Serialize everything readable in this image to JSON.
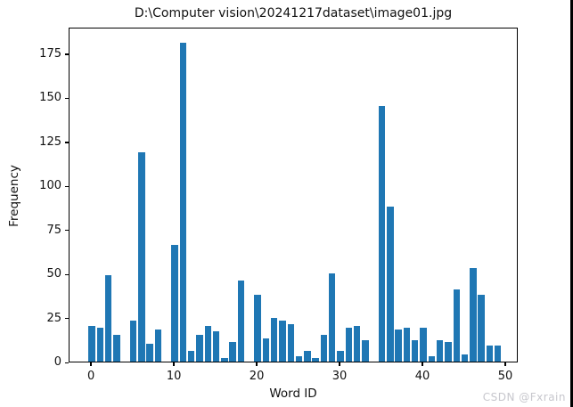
{
  "chart_data": {
    "type": "bar",
    "title": "D:\\Computer vision\\20241217dataset\\image01.jpg",
    "xlabel": "Word ID",
    "ylabel": "Frequency",
    "x": [
      0,
      1,
      2,
      3,
      4,
      5,
      6,
      7,
      8,
      9,
      10,
      11,
      12,
      13,
      14,
      15,
      16,
      17,
      18,
      19,
      20,
      21,
      22,
      23,
      24,
      25,
      26,
      27,
      28,
      29,
      30,
      31,
      32,
      33,
      34,
      35,
      36,
      37,
      38,
      39,
      40,
      41,
      42,
      43,
      44,
      45,
      46,
      47,
      48,
      49
    ],
    "values": [
      20,
      19,
      49,
      15,
      0,
      23,
      119,
      10,
      18,
      0,
      66,
      181,
      6,
      15,
      20,
      17,
      2,
      11,
      46,
      0,
      38,
      13,
      25,
      23,
      21,
      3,
      6,
      2,
      15,
      50,
      6,
      19,
      20,
      12,
      0,
      145,
      88,
      18,
      19,
      12,
      19,
      3,
      12,
      11,
      41,
      4,
      53,
      38,
      9,
      9
    ],
    "xticks": [
      0,
      10,
      20,
      30,
      40,
      50
    ],
    "yticks": [
      0,
      25,
      50,
      75,
      100,
      125,
      150,
      175
    ],
    "xlim": [
      -2.7,
      51.5
    ],
    "ylim": [
      0,
      190
    ],
    "bar_width": 0.8,
    "bar_color": "#1f77b4",
    "grid": "off",
    "legend": "none"
  },
  "watermark": {
    "text": "CSDN @Fxrain",
    "color": "#c7c7cd"
  }
}
